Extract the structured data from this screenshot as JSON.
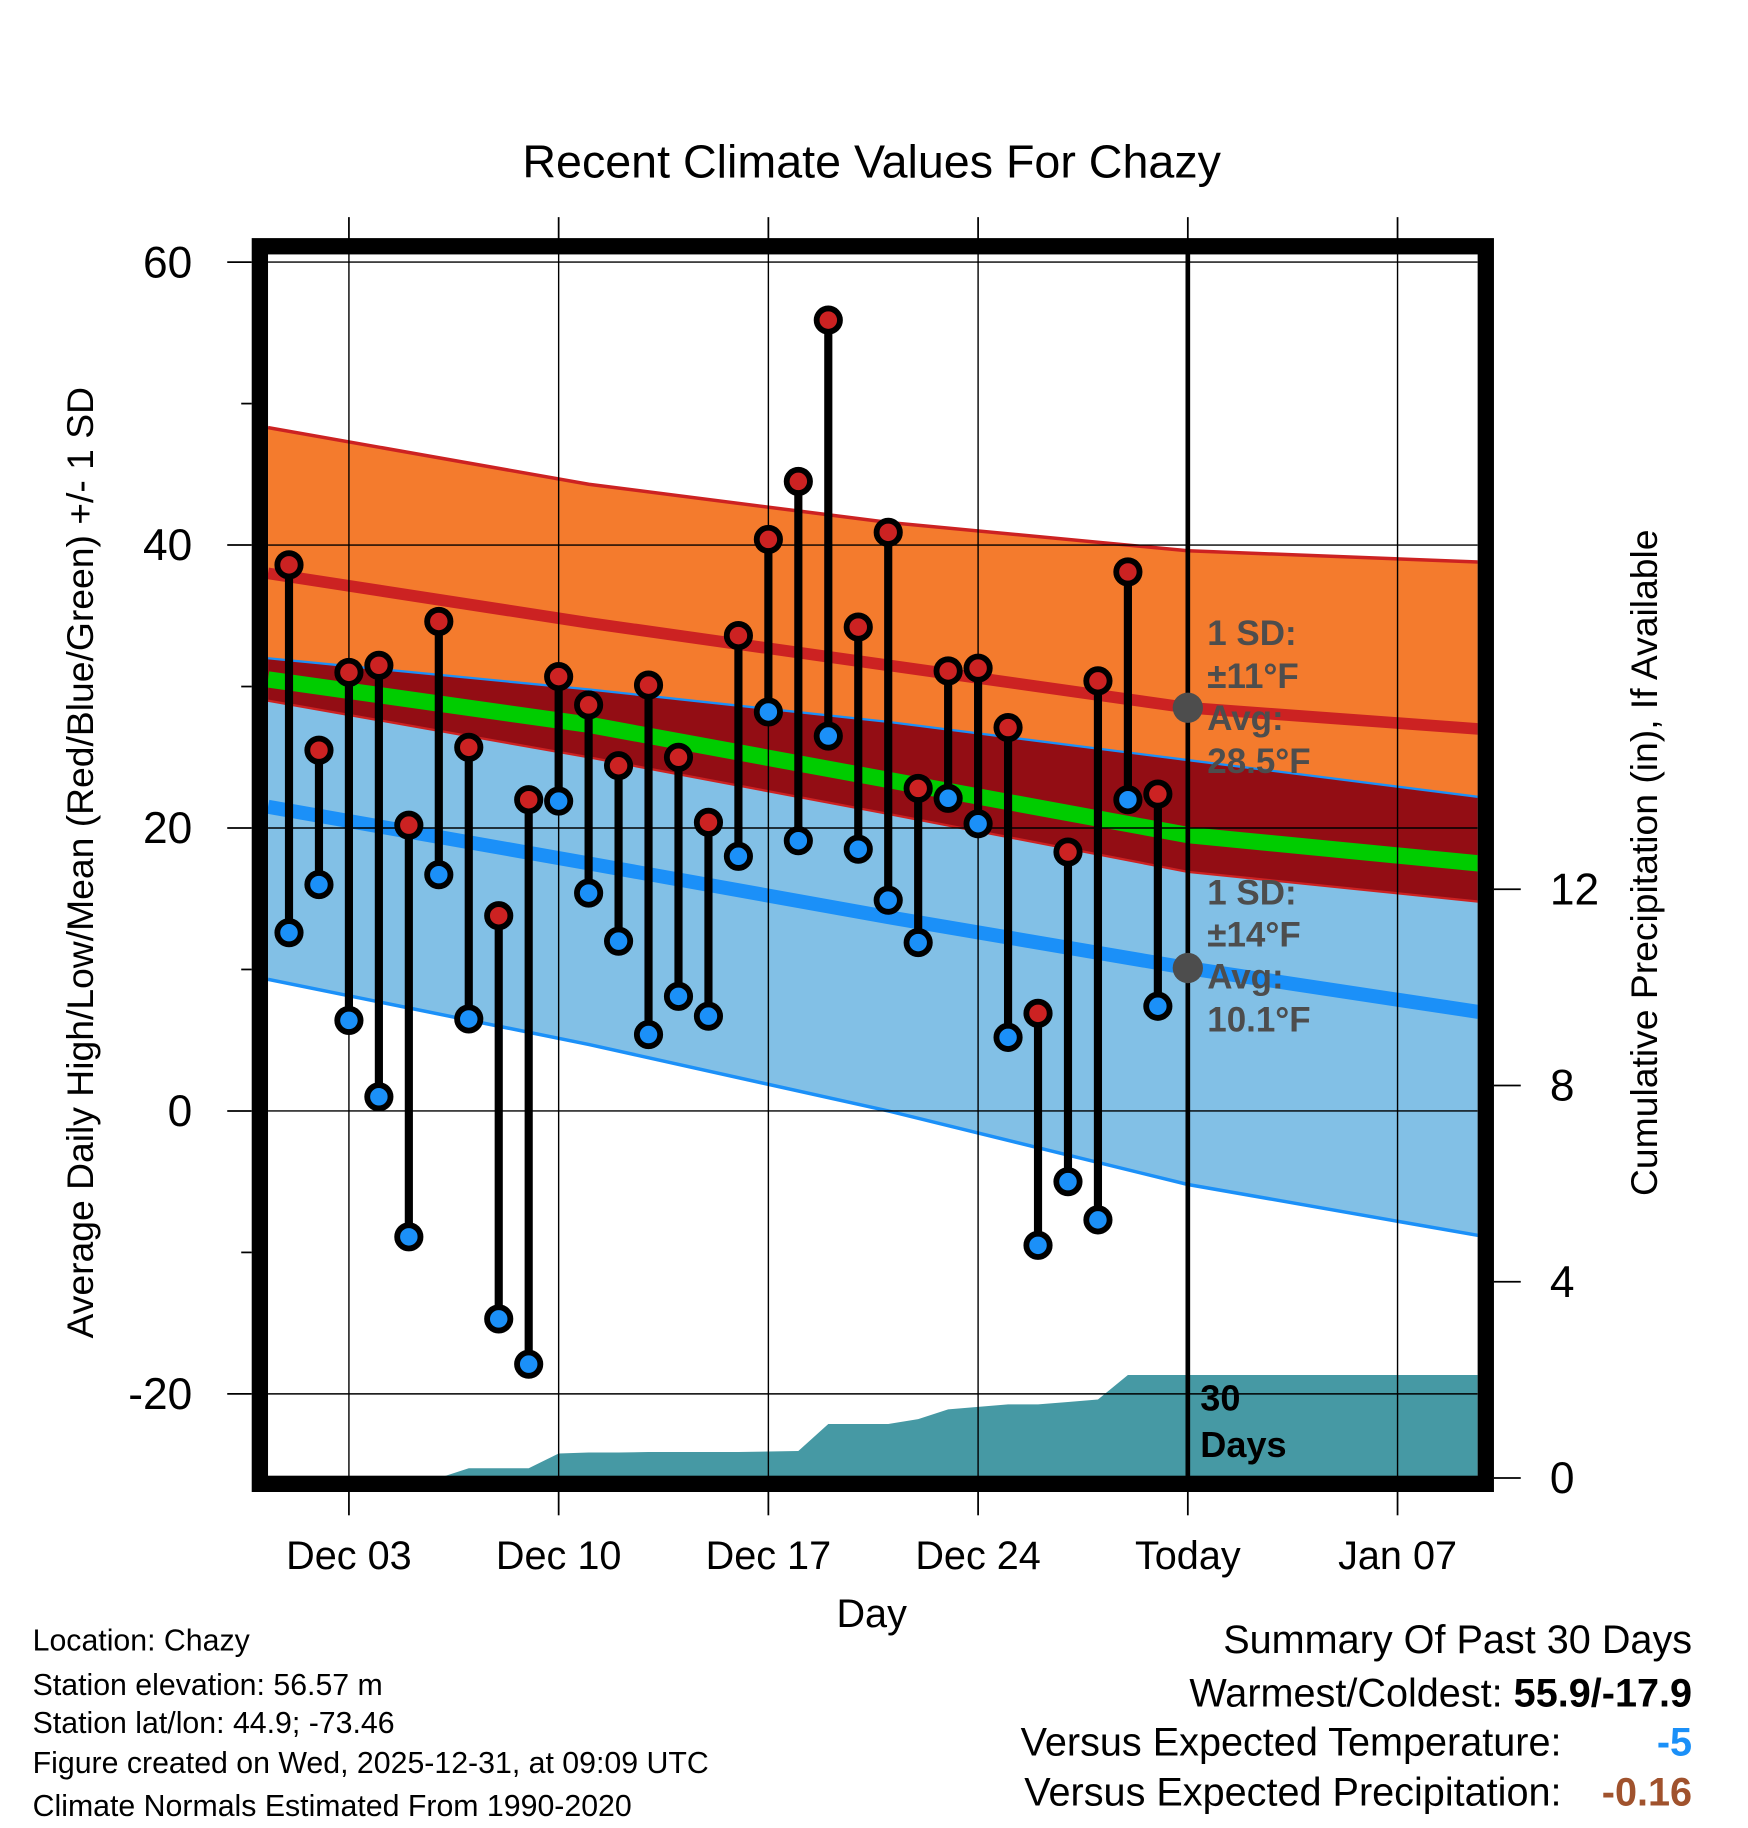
{
  "chart_data": {
    "type": "line",
    "title": "Recent Climate Values For Chazy",
    "xlabel": "Day",
    "ylabel": "Average Daily High/Low/Mean (Red/Blue/Green) +/- 1 SD",
    "y2label": "Cumulative Precipitation (in), If Available",
    "ylim": [
      -25,
      62
    ],
    "y2lim": [
      0,
      20.6
    ],
    "yticks": [
      "60",
      "40",
      "20",
      "0",
      "-20"
    ],
    "yticks_values": [
      60,
      40,
      20,
      0,
      -20
    ],
    "y2ticks": [
      "12",
      "8",
      "4",
      "0"
    ],
    "y2ticks_values": [
      12,
      8,
      4,
      0
    ],
    "xticks": [
      "Dec 03",
      "Dec 10",
      "Dec 17",
      "Dec 24",
      "Today",
      "Jan 07"
    ],
    "xticks_day": [
      2,
      9,
      16,
      23,
      30,
      37
    ],
    "x_range_days": [
      -0.7,
      39.7
    ],
    "x_day_zero": "Dec 01",
    "today_day": 30,
    "days": [
      0,
      1,
      2,
      3,
      4,
      5,
      6,
      7,
      8,
      9,
      10,
      11,
      12,
      13,
      14,
      15,
      16,
      17,
      18,
      19,
      20,
      21,
      22,
      23,
      24,
      25,
      26,
      27,
      28,
      29
    ],
    "highs": [
      38.6,
      25.5,
      31.0,
      31.5,
      20.2,
      34.6,
      25.7,
      13.8,
      22.0,
      30.7,
      28.7,
      24.4,
      30.1,
      25.0,
      20.4,
      33.6,
      40.4,
      44.5,
      55.9,
      34.2,
      40.9,
      22.8,
      31.1,
      31.3,
      27.1,
      6.9,
      18.3,
      30.4,
      38.1,
      22.4
    ],
    "lows": [
      12.6,
      16.0,
      6.4,
      1.0,
      -8.9,
      16.7,
      6.5,
      -14.7,
      -17.9,
      21.9,
      15.4,
      12.0,
      5.4,
      8.1,
      6.7,
      18.0,
      28.2,
      19.1,
      26.5,
      18.5,
      14.9,
      11.9,
      22.1,
      20.3,
      5.2,
      -9.5,
      -5.0,
      -7.7,
      22.0,
      7.4
    ],
    "normals": {
      "days": [
        -0.7,
        10,
        20,
        30,
        39.7
      ],
      "high_upper": [
        48.3,
        44.3,
        41.6,
        39.6,
        38.8
      ],
      "high_mean": [
        38.0,
        34.5,
        31.5,
        28.5,
        27.0
      ],
      "low_upper": [
        32.0,
        29.8,
        27.5,
        24.8,
        22.2
      ],
      "mean": [
        30.5,
        27.3,
        23.4,
        19.5,
        17.5
      ],
      "high_lower": [
        29.0,
        25.0,
        21.0,
        16.9,
        14.8
      ],
      "low_mean": [
        21.5,
        17.5,
        13.7,
        10.1,
        7.0
      ],
      "low_lower": [
        9.3,
        4.7,
        0.0,
        -5.2,
        -8.8
      ]
    },
    "precip": {
      "days": [
        5,
        6,
        7,
        8,
        9,
        10,
        11,
        12,
        13,
        14,
        15,
        16,
        17,
        18,
        19,
        20,
        21,
        22,
        23,
        24,
        25,
        26,
        27,
        28,
        29,
        39.7
      ],
      "values": [
        0,
        0.2,
        0.2,
        0.2,
        0.5,
        0.52,
        0.52,
        0.53,
        0.53,
        0.53,
        0.53,
        0.54,
        0.55,
        1.1,
        1.1,
        1.1,
        1.2,
        1.4,
        1.45,
        1.5,
        1.5,
        1.55,
        1.6,
        2.1,
        2.1,
        2.1
      ]
    },
    "annotations": {
      "high_sd": "1 SD:",
      "high_sd_val": "±11°F",
      "high_avg": "Avg:",
      "high_avg_val": "28.5°F",
      "low_sd": "1 SD:",
      "low_sd_val": "±14°F",
      "low_avg": "Avg:",
      "low_avg_val": "10.1°F",
      "days_label_1": "30",
      "days_label_2": "Days"
    },
    "colors": {
      "orange": "#f47b2d",
      "red": "#cc2222",
      "darkred": "#930d14",
      "green": "#00cc00",
      "lightblue": "#82c0e6",
      "blue": "#1b90f8",
      "teal": "#4699a4",
      "annot": "#4d4d4d"
    }
  },
  "footer": {
    "location": "Location: Chazy",
    "elevation": "Station elevation: 56.57 m",
    "latlon": "Station lat/lon: 44.9; -73.46",
    "created": "Figure created on Wed, 2025-12-31, at 09:09 UTC",
    "normals": "Climate Normals Estimated From 1990-2020"
  },
  "summary": {
    "title": "Summary Of Past 30 Days",
    "warmest_label": "Warmest/Coldest: ",
    "warmest_value": "55.9/-17.9",
    "temp_label": "Versus Expected Temperature:",
    "temp_value": "-5",
    "temp_color": "#1b90f8",
    "precip_label": "Versus Expected Precipitation:",
    "precip_value": "-0.16",
    "precip_color": "#a0522d"
  }
}
